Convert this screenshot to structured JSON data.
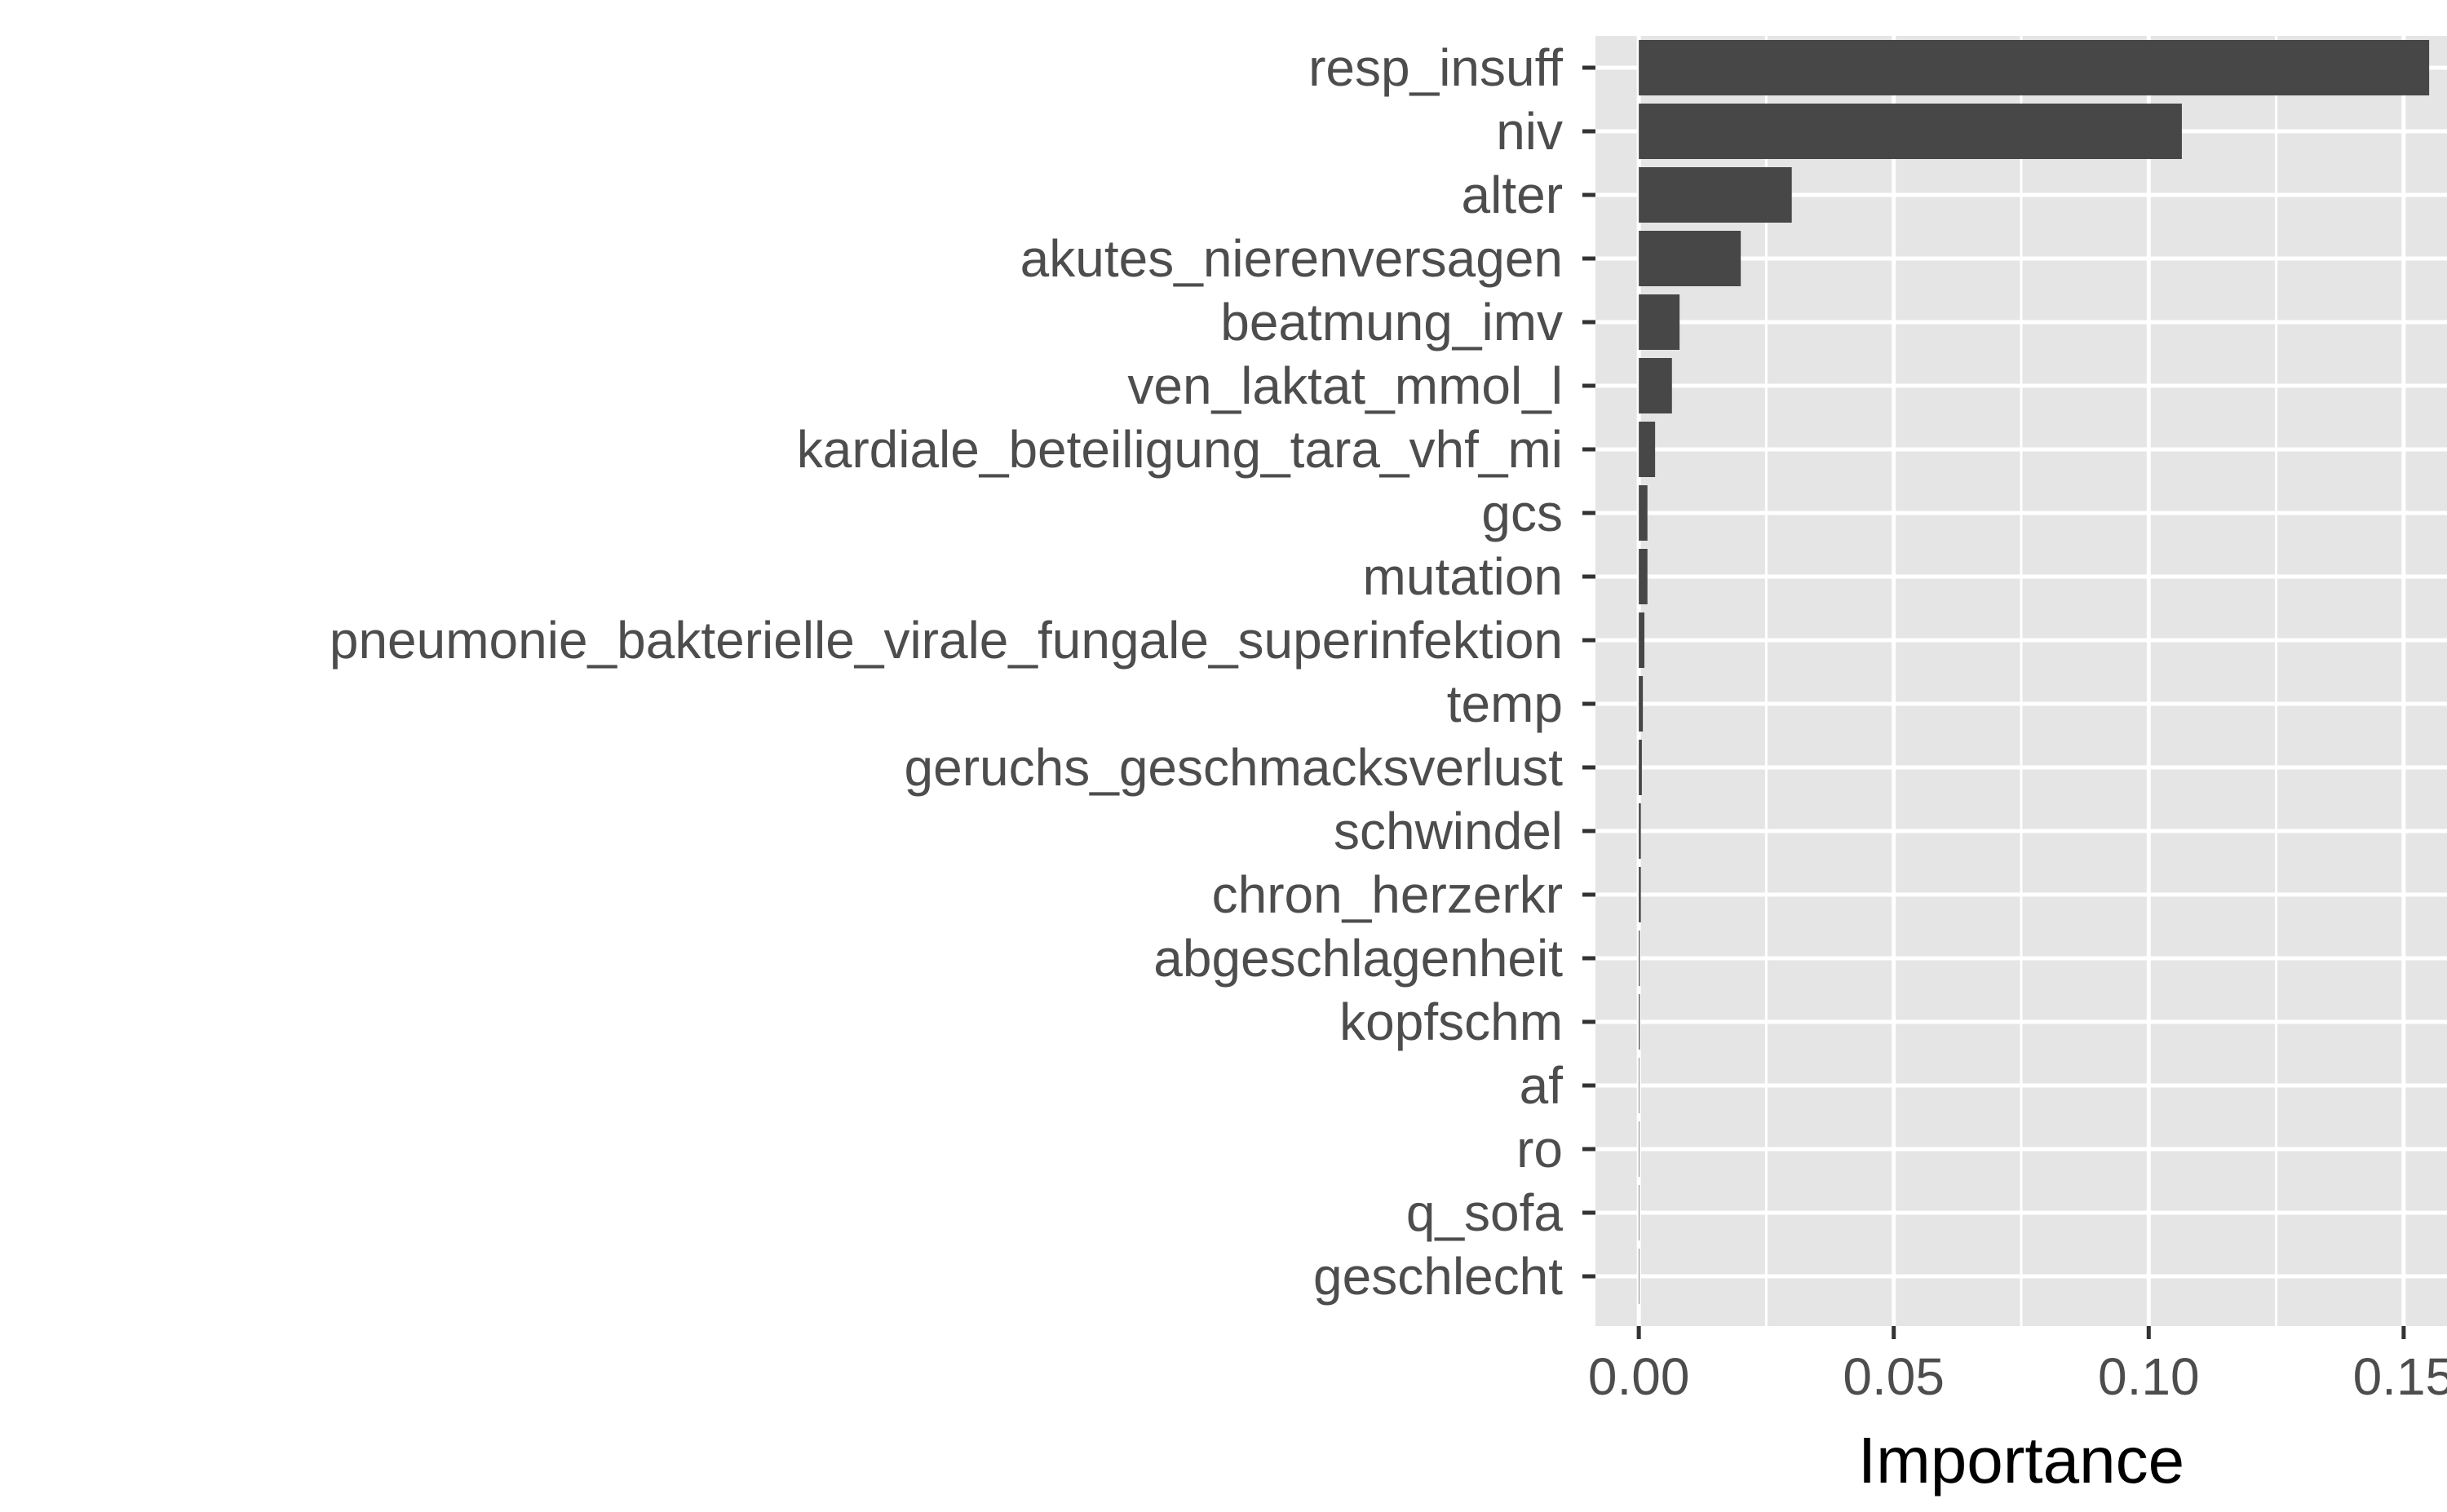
{
  "chart_data": {
    "type": "bar",
    "orientation": "horizontal",
    "xlabel": "Importance",
    "ylabel": "",
    "title": "",
    "xlim": [
      -0.0085,
      0.1585
    ],
    "xticks": [
      0.0,
      0.05,
      0.1,
      0.15
    ],
    "xtick_labels": [
      "0.00",
      "0.05",
      "0.10",
      "0.15"
    ],
    "categories": [
      "resp_insuff",
      "niv",
      "alter",
      "akutes_nierenversagen",
      "beatmung_imv",
      "ven_laktat_mmol_l",
      "kardiale_beteiligung_tara_vhf_mi",
      "gcs",
      "mutation",
      "pneumonie_bakterielle_virale_fungale_superinfektion",
      "temp",
      "geruchs_geschmacksverlust",
      "schwindel",
      "chron_herzerkr",
      "abgeschlagenheit",
      "kopfschm",
      "af",
      "ro",
      "q_sofa",
      "geschlecht"
    ],
    "values": [
      0.155,
      0.1065,
      0.03,
      0.02,
      0.008,
      0.0065,
      0.0032,
      0.0017,
      0.0017,
      0.0011,
      0.0008,
      0.0006,
      0.0004,
      0.0004,
      0.0002,
      0.0002,
      0.0001,
      0.0001,
      0.0001,
      0.0001
    ],
    "grid": true,
    "legend": "none",
    "colors": {
      "bar": "#474747",
      "panel": "#e5e5e5",
      "grid": "#ffffff",
      "text": "#4d4d4d",
      "title": "#000000"
    }
  }
}
